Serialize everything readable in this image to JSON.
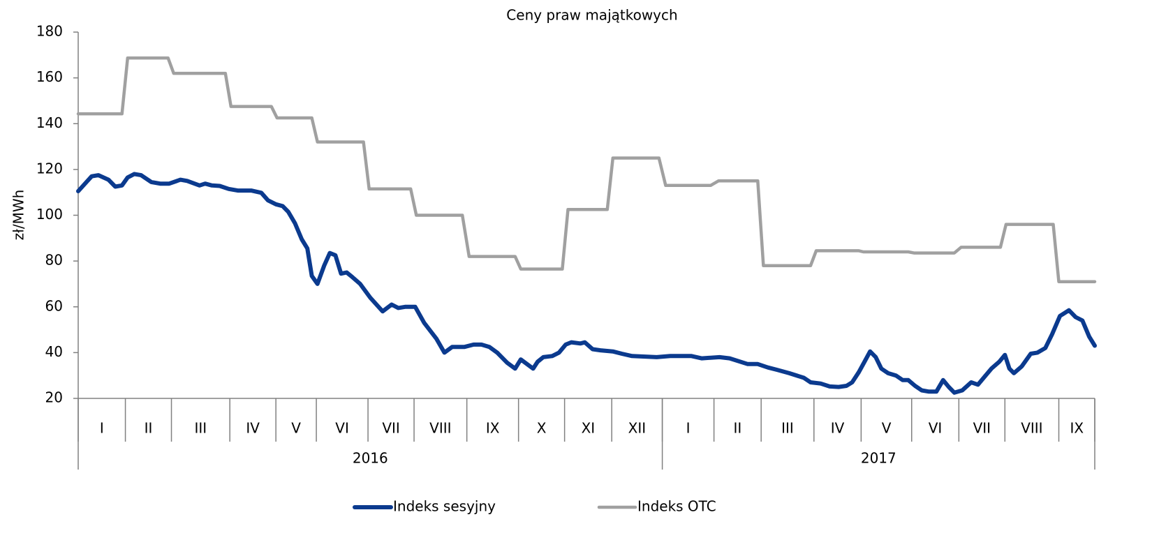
{
  "chart_data": {
    "type": "line",
    "title": "Ceny praw majątkowych",
    "ylabel": "zł/MWh",
    "ylim": [
      20,
      180
    ],
    "yticks": [
      20,
      40,
      60,
      80,
      100,
      120,
      140,
      160,
      180
    ],
    "xlim": [
      0,
      90.5
    ],
    "x_groups": {
      "edges": [
        0,
        4.2,
        8.3,
        13.5,
        17.6,
        21.2,
        25.8,
        29.9,
        34.6,
        39.2,
        43.3,
        47.5,
        52.0,
        56.6,
        60.8,
        65.5,
        69.7,
        74.2,
        78.4,
        82.5,
        87.3,
        90.5
      ],
      "labels": [
        "I",
        "II",
        "III",
        "IV",
        "V",
        "VI",
        "VII",
        "VIII",
        "IX",
        "X",
        "XI",
        "XII",
        "I",
        "II",
        "III",
        "IV",
        "V",
        "VI",
        "VII",
        "VIII",
        "IX"
      ]
    },
    "year_groups": {
      "edges": [
        0,
        52.0,
        90.5
      ],
      "labels": [
        "2016",
        "2017"
      ]
    },
    "series": [
      {
        "name": "Indeks sesyjny",
        "color": "#0b3a8e",
        "x": [
          0,
          1.2,
          1.8,
          2.7,
          3.3,
          3.9,
          4.4,
          5.0,
          5.6,
          6.5,
          7.3,
          8.1,
          9.1,
          9.7,
          10.8,
          11.3,
          11.9,
          12.6,
          13.4,
          14.2,
          15.4,
          16.3,
          16.9,
          17.6,
          18.2,
          18.7,
          19.3,
          19.9,
          20.4,
          20.8,
          21.3,
          21.9,
          22.4,
          22.9,
          23.4,
          23.9,
          24.4,
          25.1,
          26.0,
          27.1,
          27.9,
          28.5,
          29.1,
          30.0,
          30.8,
          31.9,
          32.6,
          33.3,
          34.4,
          35.2,
          35.9,
          36.6,
          37.3,
          38.2,
          38.9,
          39.4,
          40.5,
          40.9,
          41.4,
          42.2,
          42.8,
          43.4,
          43.9,
          44.7,
          45.1,
          45.8,
          46.5,
          47.6,
          48.4,
          49.3,
          51.5,
          52.7,
          54.6,
          55.5,
          57.1,
          58.0,
          59.6,
          60.5,
          61.4,
          62.2,
          63.3,
          64.6,
          65.2,
          66.1,
          66.9,
          67.7,
          68.4,
          68.9,
          69.5,
          70.0,
          70.5,
          71.0,
          71.5,
          72.1,
          72.8,
          73.4,
          73.9,
          74.5,
          75.1,
          75.7,
          76.4,
          77.0,
          77.5,
          78.0,
          78.7,
          79.5,
          80.1,
          80.7,
          81.3,
          82.0,
          82.5,
          82.9,
          83.3,
          84.0,
          84.8,
          85.4,
          86.1,
          86.7,
          87.4,
          88.2,
          88.8,
          89.4,
          90.0,
          90.5
        ],
        "values": [
          110.5,
          117,
          117.5,
          115.5,
          112.5,
          113,
          116.5,
          118,
          117.5,
          114.5,
          113.8,
          113.8,
          115.5,
          115,
          113,
          113.8,
          113,
          112.8,
          111.5,
          110.8,
          110.8,
          109.8,
          106.5,
          104.8,
          104,
          101.5,
          96.5,
          89.5,
          85.5,
          73.5,
          70,
          78,
          83.5,
          82.5,
          74.5,
          75,
          73,
          70,
          64,
          58,
          61,
          59.5,
          60,
          60,
          53,
          46,
          40,
          42.5,
          42.5,
          43.5,
          43.5,
          42.5,
          40,
          35.5,
          33,
          37,
          33,
          36,
          38,
          38.5,
          40,
          43.5,
          44.5,
          44,
          44.5,
          41.5,
          41,
          40.5,
          39.5,
          38.5,
          38,
          38.5,
          38.5,
          37.5,
          38,
          37.5,
          35,
          35,
          33.5,
          32.5,
          31,
          29,
          27,
          26.5,
          25.2,
          25,
          25.5,
          27,
          31.5,
          36,
          40.5,
          38,
          33,
          31,
          30,
          28,
          28,
          25.5,
          23.5,
          23,
          23,
          28,
          25,
          22.5,
          23.5,
          27,
          26,
          29.5,
          33,
          36,
          39,
          33,
          31,
          34,
          39.5,
          40,
          42,
          48,
          56,
          58.5,
          55.5,
          54,
          47,
          43
        ]
      },
      {
        "name": "Indeks OTC",
        "color": "#a0a0a0",
        "x": [
          0,
          3.9,
          4.4,
          8.0,
          8.5,
          13.1,
          13.6,
          17.2,
          17.7,
          20.8,
          21.3,
          25.4,
          25.9,
          29.6,
          30.1,
          34.2,
          34.8,
          38.9,
          39.4,
          43.1,
          43.6,
          47.1,
          47.6,
          51.7,
          52.3,
          56.3,
          57.0,
          60.5,
          61.0,
          65.2,
          65.7,
          69.5,
          69.9,
          73.9,
          74.4,
          78.0,
          78.6,
          82.1,
          82.6,
          86.8,
          87.3,
          90.5
        ],
        "values": [
          144.3,
          144.3,
          168.7,
          168.7,
          162,
          162,
          147.5,
          147.5,
          142.5,
          142.5,
          132,
          132,
          111.5,
          111.5,
          100,
          100,
          82,
          82,
          76.5,
          76.5,
          102.5,
          102.5,
          125,
          125,
          113,
          113,
          115,
          115,
          78,
          78,
          84.5,
          84.5,
          84,
          84,
          83.5,
          83.5,
          86,
          86,
          96,
          96,
          71,
          71
        ]
      }
    ]
  }
}
